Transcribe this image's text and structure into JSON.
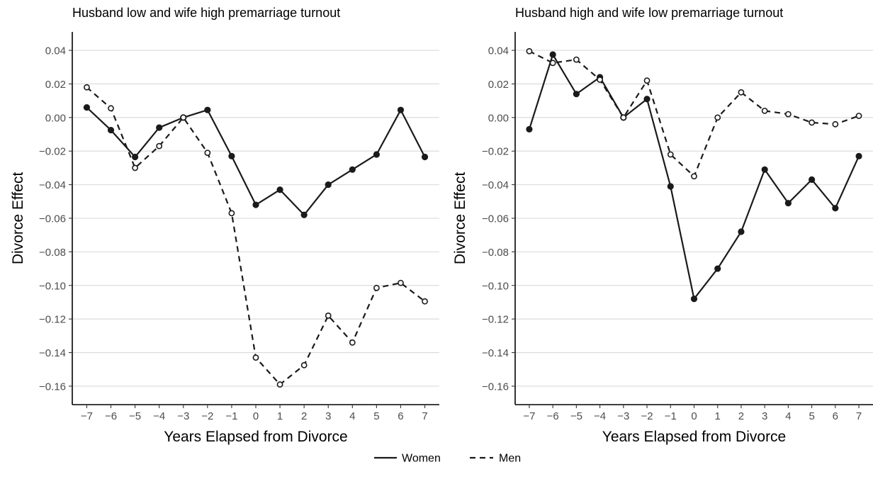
{
  "chart_data": [
    {
      "type": "line",
      "title": "Husband low and wife high premarriage turnout",
      "xlabel": "Years Elapsed from Divorce",
      "ylabel": "Divorce Effect",
      "x": [
        -7,
        -6,
        -5,
        -4,
        -3,
        -2,
        -1,
        0,
        1,
        2,
        3,
        4,
        5,
        6,
        7
      ],
      "x_tick_labels": [
        "−7",
        "−6",
        "−5",
        "−4",
        "−3",
        "−2",
        "−1",
        "0",
        "1",
        "2",
        "3",
        "4",
        "5",
        "6",
        "7"
      ],
      "y_ticks": [
        0.04,
        0.02,
        0.0,
        -0.02,
        -0.04,
        -0.06,
        -0.08,
        -0.1,
        -0.12,
        -0.14,
        -0.16
      ],
      "y_tick_labels": [
        "0.04",
        "0.02",
        "0.00",
        "−0.02",
        "−0.04",
        "−0.06",
        "−0.08",
        "−0.10",
        "−0.12",
        "−0.14",
        "−0.16"
      ],
      "xlim": [
        -7.6,
        7.6
      ],
      "ylim": [
        -0.171,
        0.051
      ],
      "grid": "horizontal",
      "series": [
        {
          "name": "Women",
          "linestyle": "solid",
          "marker": "filled-circle",
          "values": [
            0.006,
            -0.0075,
            -0.0235,
            -0.006,
            0.0,
            0.0045,
            -0.023,
            -0.052,
            -0.043,
            -0.058,
            -0.04,
            -0.031,
            -0.022,
            0.0045,
            -0.0235
          ]
        },
        {
          "name": "Men",
          "linestyle": "dashed",
          "marker": "open-circle",
          "values": [
            0.018,
            0.0055,
            -0.03,
            -0.017,
            0.0,
            -0.021,
            -0.057,
            -0.143,
            -0.159,
            -0.1475,
            -0.118,
            -0.134,
            -0.1015,
            -0.0985,
            -0.1095
          ]
        }
      ]
    },
    {
      "type": "line",
      "title": "Husband high and wife low premarriage turnout",
      "xlabel": "Years Elapsed from Divorce",
      "ylabel": "Divorce Effect",
      "x": [
        -7,
        -6,
        -5,
        -4,
        -3,
        -2,
        -1,
        0,
        1,
        2,
        3,
        4,
        5,
        6,
        7
      ],
      "x_tick_labels": [
        "−7",
        "−6",
        "−5",
        "−4",
        "−3",
        "−2",
        "−1",
        "0",
        "1",
        "2",
        "3",
        "4",
        "5",
        "6",
        "7"
      ],
      "y_ticks": [
        0.04,
        0.02,
        0.0,
        -0.02,
        -0.04,
        -0.06,
        -0.08,
        -0.1,
        -0.12,
        -0.14,
        -0.16
      ],
      "y_tick_labels": [
        "0.04",
        "0.02",
        "0.00",
        "−0.02",
        "−0.04",
        "−0.06",
        "−0.08",
        "−0.10",
        "−0.12",
        "−0.14",
        "−0.16"
      ],
      "xlim": [
        -7.6,
        7.6
      ],
      "ylim": [
        -0.171,
        0.051
      ],
      "grid": "horizontal",
      "series": [
        {
          "name": "Women",
          "linestyle": "solid",
          "marker": "filled-circle",
          "values": [
            -0.007,
            0.0375,
            0.014,
            0.024,
            0.0,
            0.011,
            -0.041,
            -0.108,
            -0.09,
            -0.068,
            -0.031,
            -0.051,
            -0.037,
            -0.054,
            -0.023
          ]
        },
        {
          "name": "Men",
          "linestyle": "dashed",
          "marker": "open-circle",
          "values": [
            0.0395,
            0.0325,
            0.0345,
            0.0225,
            0.0,
            0.022,
            -0.022,
            -0.035,
            0.0,
            0.015,
            0.004,
            0.002,
            -0.003,
            -0.004,
            0.001
          ]
        }
      ]
    }
  ],
  "legend": {
    "position": "bottom",
    "items": [
      {
        "label": "Women",
        "linestyle": "solid"
      },
      {
        "label": "Men",
        "linestyle": "dashed"
      }
    ]
  },
  "colors": {
    "line": "#1a1a1a",
    "grid": "#d9d9d9",
    "tick_text": "#4d4d4d",
    "background": "#ffffff"
  }
}
